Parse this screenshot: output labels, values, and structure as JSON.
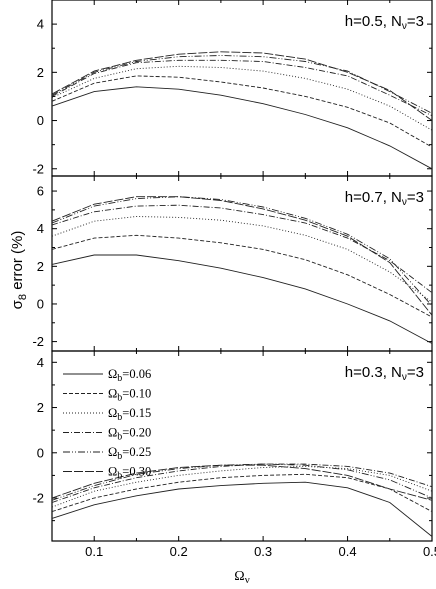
{
  "chart_data": {
    "type": "line",
    "ylabel": "σ8 error (%)",
    "xlabel": "Ων",
    "xlim": [
      0.05,
      0.5
    ],
    "x_ticks": [
      "0.1",
      "0.2",
      "0.3",
      "0.4",
      "0.5"
    ],
    "x": [
      0.05,
      0.1,
      0.15,
      0.2,
      0.25,
      0.3,
      0.35,
      0.4,
      0.45,
      0.5
    ],
    "legend": {
      "placement": "upper-left of bottom panel",
      "entries": [
        "Ωb=0.06",
        "Ωb=0.10",
        "Ωb=0.15",
        "Ωb=0.20",
        "Ωb=0.25",
        "Ωb=0.30"
      ]
    },
    "panels": [
      {
        "label": "h=0.5, Nν=3",
        "ylim": [
          -2.3,
          5.0
        ],
        "y_ticks": [
          "-2",
          "0",
          "2",
          "4"
        ],
        "series": [
          {
            "name": "Ωb=0.06",
            "values": [
              0.6,
              1.2,
              1.4,
              1.3,
              1.05,
              0.7,
              0.25,
              -0.3,
              -1.05,
              -2.0
            ]
          },
          {
            "name": "Ωb=0.10",
            "values": [
              0.8,
              1.55,
              1.85,
              1.8,
              1.6,
              1.35,
              1.0,
              0.55,
              -0.1,
              -1.1
            ]
          },
          {
            "name": "Ωb=0.15",
            "values": [
              0.95,
              1.75,
              2.15,
              2.25,
              2.2,
              2.05,
              1.75,
              1.3,
              0.6,
              -0.4
            ]
          },
          {
            "name": "Ωb=0.20",
            "values": [
              1.0,
              1.95,
              2.4,
              2.5,
              2.5,
              2.45,
              2.2,
              1.85,
              1.05,
              0.2
            ]
          },
          {
            "name": "Ωb=0.25",
            "values": [
              1.05,
              2.0,
              2.45,
              2.65,
              2.7,
              2.65,
              2.45,
              2.05,
              1.2,
              0.3
            ]
          },
          {
            "name": "Ωb=0.30",
            "values": [
              1.1,
              2.05,
              2.5,
              2.75,
              2.85,
              2.8,
              2.55,
              2.0,
              1.25,
              0.0
            ]
          }
        ]
      },
      {
        "label": "h=0.7, Nν=3",
        "ylim": [
          -2.5,
          6.8
        ],
        "y_ticks": [
          "-2",
          "0",
          "2",
          "4",
          "6"
        ],
        "series": [
          {
            "name": "Ωb=0.06",
            "values": [
              2.1,
              2.6,
              2.6,
              2.3,
              1.9,
              1.4,
              0.8,
              0.0,
              -0.9,
              -2.1
            ]
          },
          {
            "name": "Ωb=0.10",
            "values": [
              2.9,
              3.5,
              3.65,
              3.5,
              3.25,
              2.9,
              2.35,
              1.55,
              0.5,
              -0.7
            ]
          },
          {
            "name": "Ωb=0.15",
            "values": [
              3.6,
              4.4,
              4.65,
              4.6,
              4.45,
              4.15,
              3.65,
              2.9,
              1.7,
              0.1
            ]
          },
          {
            "name": "Ωb=0.20",
            "values": [
              4.2,
              4.9,
              5.2,
              5.25,
              5.1,
              4.75,
              4.3,
              3.5,
              2.3,
              0.6
            ]
          },
          {
            "name": "Ωb=0.25",
            "values": [
              4.3,
              5.2,
              5.6,
              5.7,
              5.55,
              5.15,
              4.55,
              3.7,
              2.4,
              -0.1
            ]
          },
          {
            "name": "Ωb=0.30",
            "values": [
              4.4,
              5.3,
              5.7,
              5.7,
              5.5,
              5.05,
              4.45,
              3.6,
              2.2,
              -0.6
            ]
          }
        ]
      },
      {
        "label": "h=0.3, Nν=3",
        "ylim": [
          -3.9,
          4.5
        ],
        "y_ticks": [
          "-2",
          "0",
          "2",
          "4"
        ],
        "series": [
          {
            "name": "Ωb=0.06",
            "values": [
              -2.9,
              -2.3,
              -1.9,
              -1.6,
              -1.45,
              -1.35,
              -1.3,
              -1.55,
              -2.2,
              -3.7
            ]
          },
          {
            "name": "Ωb=0.10",
            "values": [
              -2.6,
              -2.0,
              -1.6,
              -1.3,
              -1.1,
              -1.0,
              -0.95,
              -1.1,
              -1.6,
              -2.6
            ]
          },
          {
            "name": "Ωb=0.15",
            "values": [
              -2.4,
              -1.7,
              -1.3,
              -1.0,
              -0.8,
              -0.65,
              -0.6,
              -0.7,
              -1.0,
              -1.7
            ]
          },
          {
            "name": "Ωb=0.20",
            "values": [
              -2.2,
              -1.55,
              -1.1,
              -0.8,
              -0.6,
              -0.5,
              -0.5,
              -0.6,
              -0.9,
              -1.5
            ]
          },
          {
            "name": "Ωb=0.25",
            "values": [
              -2.1,
              -1.45,
              -0.95,
              -0.7,
              -0.55,
              -0.5,
              -0.55,
              -0.75,
              -1.2,
              -2.0
            ]
          },
          {
            "name": "Ωb=0.30",
            "values": [
              -2.0,
              -1.35,
              -0.9,
              -0.65,
              -0.55,
              -0.55,
              -0.7,
              -1.0,
              -1.6,
              -2.1
            ]
          }
        ]
      }
    ]
  }
}
